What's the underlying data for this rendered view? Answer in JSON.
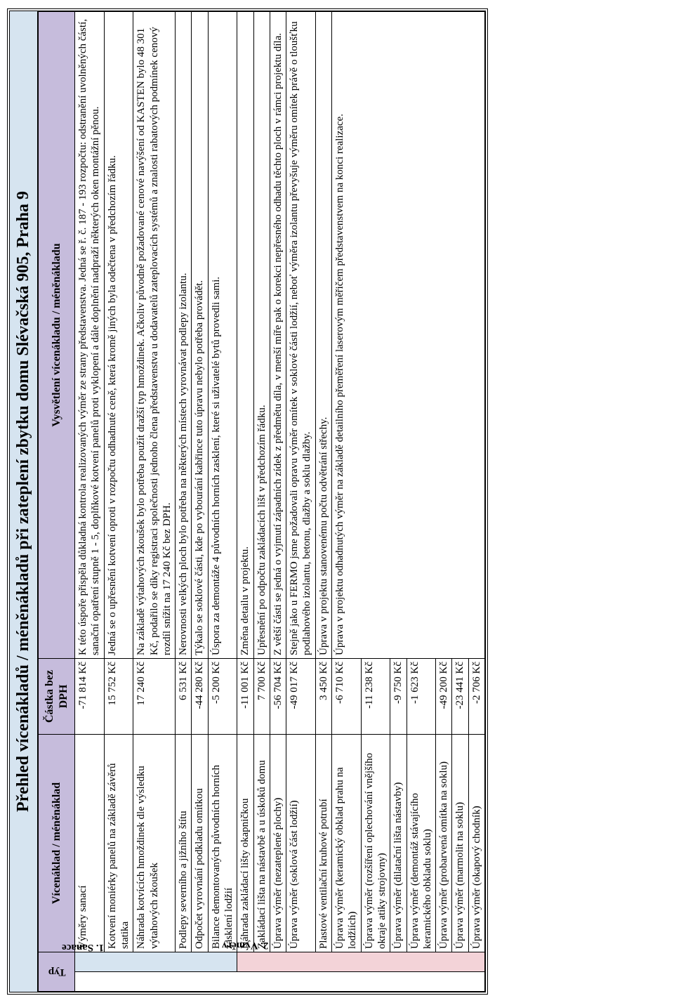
{
  "title": "Přehled vícenákladů / méněnákladů při zateplení zbytku domu Slévačská 905, Praha 9",
  "colors": {
    "title_bg": "#d6e4f0",
    "header_bg": "#c6bcdc",
    "section1_bg": "#d6e4f0",
    "section2_bg": "#f3d3d8",
    "border": "#000000"
  },
  "columns": {
    "typ": "Typ",
    "item": "Vícenáklad / méněnáklad",
    "amount": "Částka bez DPH",
    "explanation": "Vysvětlení vícenákladu / méněnákladu"
  },
  "sections": [
    {
      "label": "1. Sanace",
      "bg_class": "sec1",
      "rows": [
        {
          "item": "Výměry sanací",
          "amount": "-71 814 Kč",
          "explanation": "K této úspoře přispěla důkladná kontrola realizovaných výměr ze strany představenstva. Jedná se ř. č. 187 - 193 rozpočtu: odstranění uvolněných částí, sanační opatření stupně 1 - 5, doplňkové kotvení panelů proti vyklopení a dále doplnění nadpraží některých oken montážní pěnou."
        },
        {
          "item": "Kotvení moniérky panelů na základě závěrů statika",
          "amount": "15 752 Kč",
          "explanation": "Jedná se o upřesnění kotvení oproti v rozpočtu odhadnuté ceně, která kromě jiných byla odečtena v předchozím řádku."
        },
        {
          "item": "Náhrada kotvících hmoždinek dle výsledku výtahových zkoušek",
          "amount": "17 240 Kč",
          "explanation": "Na základě výtahových zkoušek bylo potřeba použít dražší typ hmoždinek. Ačkoliv původně požadované cenové navýšení od KASTEN bylo 48 301 Kč, podařilo se díky registraci společnosti jednoho člena představenstva u dodavatelů zateplovacích systémů a znalosti rabatových podmínek cenový rozdíl snížit na 17 240 Kč bez DPH."
        },
        {
          "item": "Podlepy severního a jižního štítu",
          "amount": "6 531 Kč",
          "explanation": "Nerovnosti velkých ploch bylo potřeba na některých místech vyrovnávat podlepy izolantu."
        },
        {
          "item": "Odpočet vyrovnání podkladu omítkou",
          "amount": "-44 280 Kč",
          "explanation": "Týkalo se soklové části, kde po vybourání kabřince tuto úpravu nebylo potřeba provádět."
        },
        {
          "item": "Bilance demontovaných původních horních zasklení lodžií",
          "amount": "-5 200 Kč",
          "explanation": "Úspora za demontáže 4 původních horních zasklení, které si uživatelé bytů provedli sami."
        }
      ]
    },
    {
      "label": "2. Výměry",
      "bg_class": "sec2",
      "rows": [
        {
          "item": "Náhrada zakládací lišty okapničkou",
          "amount": "-11 001 Kč",
          "explanation": "Změna detailu v projektu."
        },
        {
          "item": "Zakládací lišta na nástavbě a u úskoků domu",
          "amount": "7 700 Kč",
          "explanation": "Upřesnění po odpočtu zakládacích lišt v předchozím řádku."
        },
        {
          "item": "Úprava výměr (nezateplené plochy)",
          "amount": "-56 704 Kč",
          "explanation": "Z větší části se jedná o vyjmutí západních zídek z předmětu díla, v menší míře pak o korekci nepřesného odhadu těchto ploch v rámci projektu díla."
        },
        {
          "item": "Úprava výměr (soklová část lodžií)",
          "amount": "-49 017 Kč",
          "explanation": "Stejně jako u FERMO jsme požadovali opravu výměr omítek v soklové části lodžií, neboť výměra izolantu převyšuje výměru omítek právě o tloušťku podlahového izolantu, betonu, dlažby a soklu dlažby."
        },
        {
          "item": "Plastové ventilační kruhové potrubí",
          "amount": "3 450 Kč",
          "explanation": "Úprava v projektu stanovenému počtu odvětrání střechy."
        },
        {
          "item": "Úprava výměr (keramický obklad prahu na lodžiích)",
          "amount": "-6 710 Kč",
          "explanation": "Úprava v projektu odhadnutých výměr na základě detailního přeměření laserovým měřičem představenstvem na konci realizace."
        },
        {
          "item": "Úprava výměr (rozšíření oplechování vnějšího okraje atiky strojovny)",
          "amount": "-11 238 Kč",
          "explanation": ""
        },
        {
          "item": "Úprava výměr (dilatační lišta nástavby)",
          "amount": "-9 750 Kč",
          "explanation": ""
        },
        {
          "item": "Úprava výměr (demontáž stávajícího keramického obkladu soklu)",
          "amount": "-1 623 Kč",
          "explanation": ""
        },
        {
          "item": "Úprava výměr (probarvená omítka na soklu)",
          "amount": "-49 200 Kč",
          "explanation": ""
        },
        {
          "item": "Úprava výměr (marmolit na soklu)",
          "amount": "-23 441 Kč",
          "explanation": ""
        },
        {
          "item": "Úprava výměr (okapový chodník)",
          "amount": "-2 706 Kč",
          "explanation": ""
        }
      ]
    }
  ]
}
